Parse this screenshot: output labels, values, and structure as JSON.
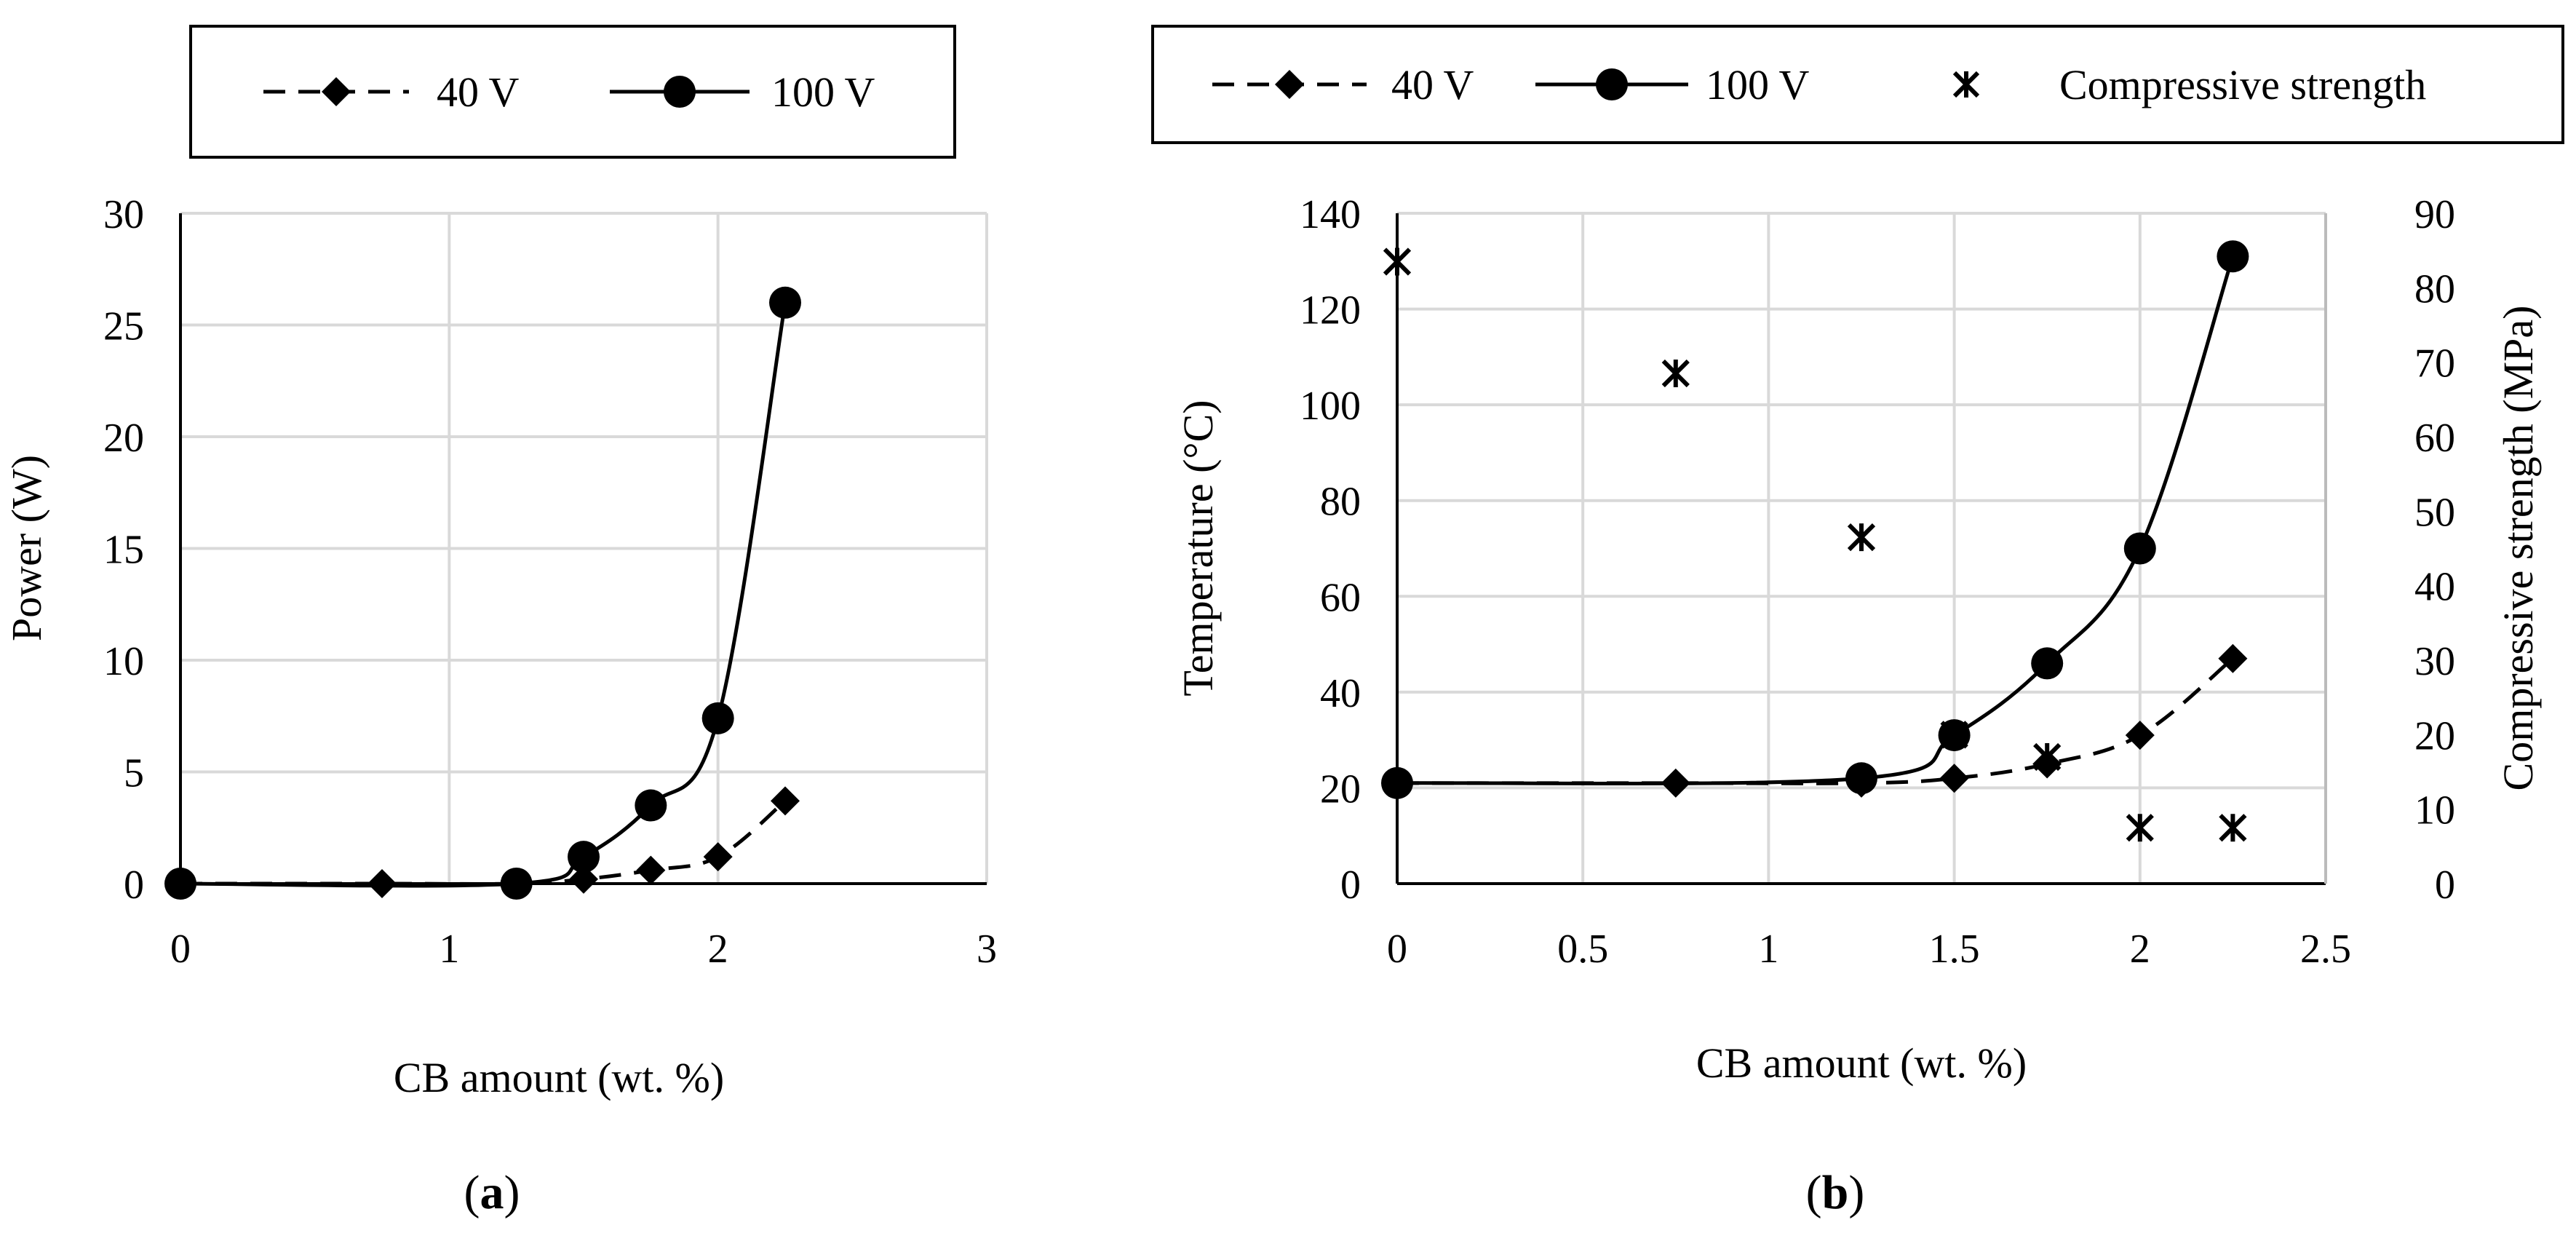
{
  "chart_data": [
    {
      "type": "line",
      "caption": "(a)",
      "xlabel": "CB amount (wt. %)",
      "ylabel": "Power (W)",
      "xlim": [
        0,
        3
      ],
      "ylim": [
        0,
        30
      ],
      "xticks": [
        "0",
        "1",
        "2",
        "3"
      ],
      "yticks": [
        "0",
        "5",
        "10",
        "15",
        "20",
        "25",
        "30"
      ],
      "grid": true,
      "legend_position": "top",
      "series": [
        {
          "name": "40 V",
          "marker": "diamond",
          "line": "dashed",
          "x": [
            0,
            0.75,
            1.25,
            1.5,
            1.75,
            2.0,
            2.25
          ],
          "y": [
            0,
            0,
            0,
            0.2,
            0.6,
            1.2,
            3.7
          ]
        },
        {
          "name": "100 V",
          "marker": "circle",
          "line": "solid",
          "x": [
            0,
            1.25,
            1.5,
            1.75,
            2.0,
            2.25
          ],
          "y": [
            0,
            0,
            1.2,
            3.5,
            7.4,
            26
          ]
        }
      ]
    },
    {
      "type": "line",
      "caption": "(b)",
      "xlabel": "CB amount (wt. %)",
      "ylabel": "Temperature (°C)",
      "y2label": "Compressive strength (MPa)",
      "xlim": [
        0,
        2.5
      ],
      "ylim": [
        0,
        140
      ],
      "y2lim": [
        0,
        90
      ],
      "xticks": [
        "0",
        "0.5",
        "1",
        "1.5",
        "2",
        "2.5"
      ],
      "yticks": [
        "0",
        "20",
        "40",
        "60",
        "80",
        "100",
        "120",
        "140"
      ],
      "y2ticks": [
        "0",
        "10",
        "20",
        "30",
        "40",
        "50",
        "60",
        "70",
        "80",
        "90"
      ],
      "grid": true,
      "legend_position": "top",
      "series": [
        {
          "name": "40 V",
          "marker": "diamond",
          "line": "dashed",
          "axis": "left",
          "x": [
            0,
            0.75,
            1.25,
            1.5,
            1.75,
            2.0,
            2.25
          ],
          "y": [
            21,
            21,
            21,
            22,
            25,
            31,
            47
          ]
        },
        {
          "name": "100 V",
          "marker": "circle",
          "line": "solid",
          "axis": "left",
          "x": [
            0,
            1.25,
            1.5,
            1.75,
            2.0,
            2.25
          ],
          "y": [
            21,
            22,
            31,
            46,
            70,
            131
          ]
        },
        {
          "name": "Compressive strength",
          "marker": "star",
          "line": "none",
          "axis": "right",
          "x": [
            0,
            0.75,
            1.25,
            1.5,
            1.75,
            2.0,
            2.25
          ],
          "y": [
            83.5,
            68.5,
            46.5,
            20,
            17,
            7.5,
            7.5
          ]
        }
      ]
    }
  ]
}
